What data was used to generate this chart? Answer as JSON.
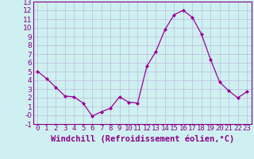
{
  "x": [
    0,
    1,
    2,
    3,
    4,
    5,
    6,
    7,
    8,
    9,
    10,
    11,
    12,
    13,
    14,
    15,
    16,
    17,
    18,
    19,
    20,
    21,
    22,
    23
  ],
  "y": [
    5.0,
    4.2,
    3.2,
    2.2,
    2.1,
    1.4,
    -0.1,
    0.4,
    0.8,
    2.1,
    1.5,
    1.4,
    5.6,
    7.3,
    9.8,
    11.5,
    12.0,
    11.2,
    9.3,
    6.4,
    3.8,
    2.8,
    2.0,
    2.7
  ],
  "line_color": "#990099",
  "marker": "D",
  "marker_size": 2,
  "background_color": "#cff0f0",
  "grid_color": "#bbbbdd",
  "xlabel": "Windchill (Refroidissement éolien,°C)",
  "xlabel_color": "#880088",
  "xlim": [
    -0.5,
    23.5
  ],
  "ylim": [
    -1,
    13
  ],
  "ytick_step": 1,
  "xtick_labels": [
    "0",
    "1",
    "2",
    "3",
    "4",
    "5",
    "6",
    "7",
    "8",
    "9",
    "10",
    "11",
    "12",
    "13",
    "14",
    "15",
    "16",
    "17",
    "18",
    "19",
    "20",
    "21",
    "22",
    "23"
  ],
  "axis_color": "#880088",
  "tick_color": "#880088",
  "label_fontsize": 6.5,
  "xlabel_fontsize": 7.5
}
